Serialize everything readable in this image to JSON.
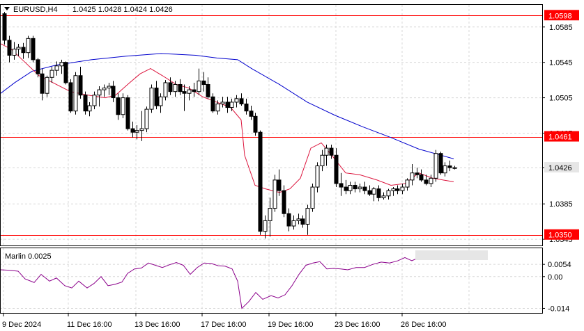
{
  "header": {
    "symbol_label": "EURUSD,H4",
    "ohlc": "1.0425 1.0428 1.0424 1.0426"
  },
  "indicator": {
    "label": "Marlin 0.0025",
    "color": "#8b008b",
    "y_ticks": [
      "0.0054",
      "0.00",
      "-0.014"
    ]
  },
  "colors": {
    "grid": "#d8d8d8",
    "level_line": "#ff0000",
    "ma_slow": "#0000cd",
    "ma_fast": "#dc143c",
    "candle": "#000000",
    "current_badge": "#e6e6e6"
  },
  "chart_data": {
    "type": "candlestick",
    "ylim": [
      1.0338,
      1.061
    ],
    "y_ticks": [
      "1.0585",
      "1.0545",
      "1.0505",
      "1.0465",
      "1.0426",
      "1.0385",
      "1.0345"
    ],
    "x_tick_labels": [
      "9 Dec 2024",
      "11 Dec 16:00",
      "13 Dec 16:00",
      "17 Dec 16:00",
      "19 Dec 16:00",
      "23 Dec 16:00",
      "26 Dec 16:00"
    ],
    "levels": [
      {
        "value": 1.0598,
        "label": "1.0598"
      },
      {
        "value": 1.0461,
        "label": "1.0461"
      },
      {
        "value": 1.035,
        "label": "1.0350"
      }
    ],
    "current_price": {
      "value": 1.0426,
      "label": "1.0426"
    },
    "candles": [
      [
        1.06,
        1.0602,
        1.0565,
        1.057
      ],
      [
        1.057,
        1.0575,
        1.0545,
        1.0553
      ],
      [
        1.0553,
        1.0568,
        1.0548,
        1.056
      ],
      [
        1.056,
        1.0566,
        1.0552,
        1.0562
      ],
      [
        1.0562,
        1.0567,
        1.0549,
        1.0556
      ],
      [
        1.0556,
        1.0575,
        1.055,
        1.0572
      ],
      [
        1.0572,
        1.0575,
        1.0545,
        1.0548
      ],
      [
        1.0548,
        1.055,
        1.0528,
        1.0532
      ],
      [
        1.0532,
        1.0538,
        1.0502,
        1.051
      ],
      [
        1.051,
        1.053,
        1.0506,
        1.0528
      ],
      [
        1.0528,
        1.054,
        1.0522,
        1.0536
      ],
      [
        1.0536,
        1.0546,
        1.053,
        1.0541
      ],
      [
        1.0541,
        1.0548,
        1.0532,
        1.0545
      ],
      [
        1.0545,
        1.0546,
        1.052,
        1.0522
      ],
      [
        1.0522,
        1.0526,
        1.0488,
        1.049
      ],
      [
        1.049,
        1.0534,
        1.0486,
        1.053
      ],
      [
        1.053,
        1.054,
        1.0504,
        1.0508
      ],
      [
        1.0508,
        1.0512,
        1.0486,
        1.049
      ],
      [
        1.049,
        1.05,
        1.0484,
        1.0496
      ],
      [
        1.0496,
        1.0512,
        1.0492,
        1.0508
      ],
      [
        1.0508,
        1.0518,
        1.0495,
        1.0514
      ],
      [
        1.0514,
        1.052,
        1.0506,
        1.0516
      ],
      [
        1.0516,
        1.0522,
        1.0508,
        1.0518
      ],
      [
        1.0518,
        1.0524,
        1.05,
        1.0505
      ],
      [
        1.0505,
        1.051,
        1.048,
        1.0486
      ],
      [
        1.0486,
        1.051,
        1.0482,
        1.0505
      ],
      [
        1.0505,
        1.0508,
        1.0468,
        1.047
      ],
      [
        1.047,
        1.0478,
        1.046,
        1.0466
      ],
      [
        1.0466,
        1.0474,
        1.0458,
        1.0468
      ],
      [
        1.0468,
        1.049,
        1.0456,
        1.047
      ],
      [
        1.047,
        1.0495,
        1.0466,
        1.0492
      ],
      [
        1.0492,
        1.052,
        1.0488,
        1.0516
      ],
      [
        1.0516,
        1.0524,
        1.0492,
        1.0496
      ],
      [
        1.0496,
        1.051,
        1.0488,
        1.0506
      ],
      [
        1.0506,
        1.0525,
        1.0502,
        1.0522
      ],
      [
        1.0522,
        1.0528,
        1.0508,
        1.0512
      ],
      [
        1.0512,
        1.0524,
        1.0506,
        1.052
      ],
      [
        1.052,
        1.0526,
        1.0508,
        1.0512
      ],
      [
        1.0512,
        1.052,
        1.049,
        1.051
      ],
      [
        1.051,
        1.0518,
        1.0502,
        1.0514
      ],
      [
        1.0514,
        1.0522,
        1.0506,
        1.0512
      ],
      [
        1.0512,
        1.0538,
        1.0508,
        1.0524
      ],
      [
        1.0524,
        1.0534,
        1.0512,
        1.052
      ],
      [
        1.052,
        1.0528,
        1.0504,
        1.0506
      ],
      [
        1.0506,
        1.051,
        1.0488,
        1.049
      ],
      [
        1.049,
        1.0502,
        1.0486,
        1.0498
      ],
      [
        1.0498,
        1.0506,
        1.0494,
        1.05
      ],
      [
        1.05,
        1.0506,
        1.0488,
        1.0494
      ],
      [
        1.0494,
        1.0504,
        1.049,
        1.05
      ],
      [
        1.05,
        1.0508,
        1.0494,
        1.0504
      ],
      [
        1.0504,
        1.051,
        1.0496,
        1.0498
      ],
      [
        1.0498,
        1.0504,
        1.0486,
        1.049
      ],
      [
        1.049,
        1.0496,
        1.048,
        1.0484
      ],
      [
        1.0484,
        1.0488,
        1.0462,
        1.0466
      ],
      [
        1.0466,
        1.0468,
        1.035,
        1.0354
      ],
      [
        1.0354,
        1.0372,
        1.0346,
        1.0366
      ],
      [
        1.0366,
        1.0392,
        1.0348,
        1.038
      ],
      [
        1.038,
        1.0418,
        1.0376,
        1.0412
      ],
      [
        1.0412,
        1.0424,
        1.0394,
        1.04
      ],
      [
        1.04,
        1.0406,
        1.037,
        1.0374
      ],
      [
        1.0374,
        1.038,
        1.0354,
        1.036
      ],
      [
        1.036,
        1.0372,
        1.0356,
        1.0366
      ],
      [
        1.0366,
        1.0374,
        1.0362,
        1.0368
      ],
      [
        1.0368,
        1.0372,
        1.0358,
        1.0362
      ],
      [
        1.0362,
        1.0384,
        1.035,
        1.038
      ],
      [
        1.038,
        1.0408,
        1.0376,
        1.0404
      ],
      [
        1.0404,
        1.0432,
        1.0398,
        1.0428
      ],
      [
        1.0428,
        1.0446,
        1.0422,
        1.044
      ],
      [
        1.044,
        1.0452,
        1.0428,
        1.0448
      ],
      [
        1.0448,
        1.0452,
        1.0436,
        1.044
      ],
      [
        1.044,
        1.0448,
        1.0404,
        1.0408
      ],
      [
        1.0408,
        1.042,
        1.0394,
        1.0404
      ],
      [
        1.0404,
        1.0412,
        1.0396,
        1.04
      ],
      [
        1.04,
        1.041,
        1.0396,
        1.0406
      ],
      [
        1.0406,
        1.041,
        1.0398,
        1.0402
      ],
      [
        1.0402,
        1.0408,
        1.0398,
        1.0404
      ],
      [
        1.0404,
        1.041,
        1.0396,
        1.04
      ],
      [
        1.04,
        1.0406,
        1.0394,
        1.0396
      ],
      [
        1.0396,
        1.0404,
        1.0388,
        1.0402
      ],
      [
        1.0402,
        1.0406,
        1.0388,
        1.0392
      ],
      [
        1.0392,
        1.0398,
        1.039,
        1.0394
      ],
      [
        1.0394,
        1.0402,
        1.039,
        1.04
      ],
      [
        1.04,
        1.0404,
        1.0394,
        1.0402
      ],
      [
        1.0402,
        1.0406,
        1.0396,
        1.04
      ],
      [
        1.04,
        1.0408,
        1.0396,
        1.0404
      ],
      [
        1.0404,
        1.0414,
        1.04,
        1.0412
      ],
      [
        1.0412,
        1.043,
        1.0406,
        1.042
      ],
      [
        1.042,
        1.0426,
        1.0414,
        1.0418
      ],
      [
        1.0418,
        1.0424,
        1.041,
        1.0412
      ],
      [
        1.0412,
        1.0418,
        1.0406,
        1.0408
      ],
      [
        1.0408,
        1.0418,
        1.0404,
        1.0414
      ],
      [
        1.0414,
        1.0446,
        1.041,
        1.0442
      ],
      [
        1.0442,
        1.0444,
        1.0418,
        1.042
      ],
      [
        1.042,
        1.0432,
        1.0416,
        1.0428
      ],
      [
        1.0428,
        1.0434,
        1.0422,
        1.0426
      ],
      [
        1.0425,
        1.0428,
        1.0424,
        1.0426
      ]
    ],
    "ma_slow": [
      [
        0,
        1.051
      ],
      [
        20,
        1.0522
      ],
      [
        45,
        1.0535
      ],
      [
        80,
        1.0542
      ],
      [
        130,
        1.0548
      ],
      [
        180,
        1.0552
      ],
      [
        230,
        1.0555
      ],
      [
        280,
        1.0553
      ],
      [
        310,
        1.055
      ],
      [
        340,
        1.0548
      ],
      [
        360,
        1.0538
      ],
      [
        400,
        1.052
      ],
      [
        440,
        1.05
      ],
      [
        480,
        1.0485
      ],
      [
        520,
        1.0472
      ],
      [
        560,
        1.046
      ],
      [
        600,
        1.0447
      ],
      [
        650,
        1.0436
      ]
    ],
    "ma_fast": [
      [
        0,
        1.0566
      ],
      [
        15,
        1.056
      ],
      [
        35,
        1.0545
      ],
      [
        55,
        1.053
      ],
      [
        75,
        1.0522
      ],
      [
        100,
        1.0512
      ],
      [
        125,
        1.0508
      ],
      [
        150,
        1.0505
      ],
      [
        165,
        1.0508
      ],
      [
        185,
        1.0522
      ],
      [
        200,
        1.0532
      ],
      [
        215,
        1.0538
      ],
      [
        232,
        1.053
      ],
      [
        252,
        1.052
      ],
      [
        270,
        1.0516
      ],
      [
        290,
        1.0506
      ],
      [
        310,
        1.05
      ],
      [
        330,
        1.0494
      ],
      [
        345,
        1.048
      ],
      [
        350,
        1.044
      ],
      [
        365,
        1.0406
      ],
      [
        380,
        1.0402
      ],
      [
        400,
        1.0398
      ],
      [
        415,
        1.0402
      ],
      [
        430,
        1.0414
      ],
      [
        445,
        1.0448
      ],
      [
        460,
        1.0454
      ],
      [
        475,
        1.044
      ],
      [
        495,
        1.042
      ],
      [
        515,
        1.0418
      ],
      [
        540,
        1.0412
      ],
      [
        560,
        1.0406
      ],
      [
        580,
        1.0408
      ],
      [
        600,
        1.042
      ],
      [
        620,
        1.0414
      ],
      [
        650,
        1.041
      ]
    ],
    "marlin": [
      [
        0,
        0.003
      ],
      [
        12,
        0.0028
      ],
      [
        25,
        0.0024
      ],
      [
        35,
        -0.001
      ],
      [
        48,
        -0.0026
      ],
      [
        58,
        0.001
      ],
      [
        70,
        -0.002
      ],
      [
        80,
        -0.0006
      ],
      [
        92,
        -0.004
      ],
      [
        102,
        -0.005
      ],
      [
        112,
        -0.002
      ],
      [
        124,
        -0.005
      ],
      [
        134,
        -0.003
      ],
      [
        144,
        0.0
      ],
      [
        154,
        -0.004
      ],
      [
        164,
        -0.0034
      ],
      [
        174,
        -0.0024
      ],
      [
        182,
        0.0014
      ],
      [
        192,
        0.0034
      ],
      [
        202,
        0.0038
      ],
      [
        212,
        0.006
      ],
      [
        222,
        0.005
      ],
      [
        232,
        0.004
      ],
      [
        242,
        0.0052
      ],
      [
        252,
        0.0062
      ],
      [
        262,
        0.005
      ],
      [
        272,
        0.001
      ],
      [
        282,
        0.004
      ],
      [
        292,
        0.006
      ],
      [
        302,
        0.0058
      ],
      [
        312,
        0.0048
      ],
      [
        322,
        0.0046
      ],
      [
        332,
        0.0034
      ],
      [
        340,
        -0.002
      ],
      [
        346,
        -0.014
      ],
      [
        356,
        -0.011
      ],
      [
        366,
        -0.007
      ],
      [
        376,
        -0.01
      ],
      [
        388,
        -0.0084
      ],
      [
        398,
        -0.0094
      ],
      [
        408,
        -0.008
      ],
      [
        418,
        -0.004
      ],
      [
        428,
        0.001
      ],
      [
        438,
        0.005
      ],
      [
        448,
        0.006
      ],
      [
        458,
        0.0066
      ],
      [
        468,
        0.0034
      ],
      [
        478,
        0.0036
      ],
      [
        488,
        0.0034
      ],
      [
        498,
        0.003
      ],
      [
        510,
        0.004
      ],
      [
        522,
        0.004
      ],
      [
        534,
        0.0054
      ],
      [
        546,
        0.0064
      ],
      [
        558,
        0.006
      ],
      [
        570,
        0.007
      ],
      [
        580,
        0.0084
      ],
      [
        590,
        0.007
      ],
      [
        600,
        0.0084
      ],
      [
        610,
        0.01
      ],
      [
        620,
        0.011
      ],
      [
        630,
        0.0094
      ],
      [
        640,
        0.009
      ],
      [
        650,
        0.008
      ]
    ]
  }
}
